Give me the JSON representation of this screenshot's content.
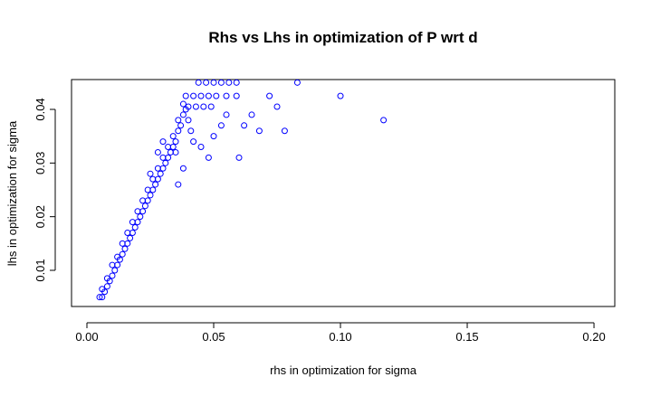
{
  "chart_data": {
    "type": "scatter",
    "title": "Rhs vs Lhs in optimization of P wrt d",
    "x_label": "rhs in optimization for sigma",
    "y_label": "lhs in optimization for sigma",
    "color": "#0000ff",
    "x": [
      0.005,
      0.006,
      0.007,
      0.006,
      0.008,
      0.008,
      0.009,
      0.01,
      0.01,
      0.011,
      0.012,
      0.012,
      0.013,
      0.014,
      0.014,
      0.015,
      0.016,
      0.016,
      0.017,
      0.018,
      0.018,
      0.019,
      0.02,
      0.02,
      0.021,
      0.022,
      0.022,
      0.023,
      0.024,
      0.024,
      0.025,
      0.026,
      0.026,
      0.027,
      0.028,
      0.028,
      0.029,
      0.03,
      0.03,
      0.031,
      0.032,
      0.032,
      0.033,
      0.034,
      0.034,
      0.035,
      0.036,
      0.036,
      0.037,
      0.038,
      0.038,
      0.039,
      0.04,
      0.041,
      0.042,
      0.038,
      0.036,
      0.035,
      0.03,
      0.028,
      0.025,
      0.045,
      0.05,
      0.053,
      0.055,
      0.04,
      0.043,
      0.046,
      0.049,
      0.039,
      0.042,
      0.045,
      0.048,
      0.051,
      0.055,
      0.059,
      0.044,
      0.047,
      0.05,
      0.053,
      0.056,
      0.059,
      0.048,
      0.06,
      0.062,
      0.065,
      0.068,
      0.072,
      0.075,
      0.078,
      0.083,
      0.1,
      0.117
    ],
    "values": [
      0.005,
      0.005,
      0.006,
      0.0065,
      0.007,
      0.0085,
      0.008,
      0.009,
      0.011,
      0.01,
      0.011,
      0.0125,
      0.012,
      0.013,
      0.015,
      0.014,
      0.015,
      0.017,
      0.016,
      0.017,
      0.019,
      0.018,
      0.019,
      0.021,
      0.02,
      0.021,
      0.023,
      0.022,
      0.023,
      0.025,
      0.024,
      0.025,
      0.027,
      0.026,
      0.027,
      0.029,
      0.028,
      0.029,
      0.031,
      0.03,
      0.031,
      0.033,
      0.032,
      0.033,
      0.035,
      0.034,
      0.036,
      0.038,
      0.037,
      0.039,
      0.041,
      0.04,
      0.038,
      0.036,
      0.034,
      0.029,
      0.026,
      0.032,
      0.034,
      0.032,
      0.028,
      0.033,
      0.035,
      0.037,
      0.039,
      0.0405,
      0.0405,
      0.0405,
      0.0405,
      0.0425,
      0.0425,
      0.0425,
      0.0425,
      0.0425,
      0.0425,
      0.0425,
      0.045,
      0.045,
      0.045,
      0.045,
      0.045,
      0.045,
      0.031,
      0.031,
      0.037,
      0.039,
      0.036,
      0.0425,
      0.0405,
      0.036,
      0.045,
      0.0425,
      0.038
    ],
    "xlim": [
      -0.00607,
      0.2082
    ],
    "ylim": [
      0.00326,
      0.04556
    ],
    "xticks": [
      {
        "value": 0,
        "label": "0.00"
      },
      {
        "value": 0.05,
        "label": "0.05"
      },
      {
        "value": 0.1,
        "label": "0.10"
      },
      {
        "value": 0.15,
        "label": "0.15"
      },
      {
        "value": 0.2,
        "label": "0.20"
      }
    ],
    "yticks": [
      0.01,
      0.02,
      0.03,
      0.04
    ]
  }
}
